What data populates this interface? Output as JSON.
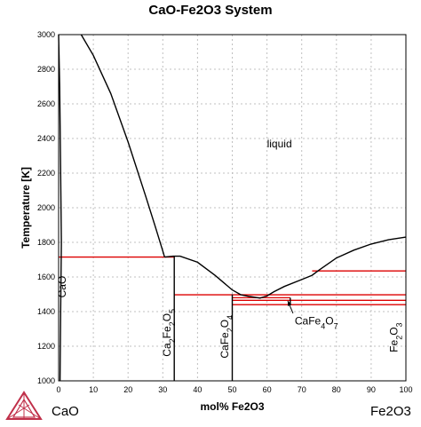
{
  "title": "CaO-Fe2O3 System",
  "endmembers": {
    "left": "CaO",
    "right": "Fe2O3"
  },
  "colors": {
    "curve": "#000000",
    "invariant": "#dd0000",
    "grid": "#c0c0c0"
  },
  "chart_data": {
    "type": "line",
    "title": "CaO-Fe2O3 System",
    "xlabel": "mol% Fe2O3",
    "ylabel": "Temperature [K]",
    "xlim": [
      0,
      100
    ],
    "ylim": [
      1000,
      3000
    ],
    "xticks": [
      0,
      10,
      20,
      30,
      40,
      50,
      60,
      70,
      80,
      90,
      100
    ],
    "yticks": [
      1000,
      1200,
      1400,
      1600,
      1800,
      2000,
      2200,
      2400,
      2600,
      2800,
      3000
    ],
    "grid": true,
    "liquidus": [
      [
        {
          "x": 6.5,
          "y": 3000
        },
        {
          "x": 10,
          "y": 2880
        },
        {
          "x": 15,
          "y": 2660
        },
        {
          "x": 20,
          "y": 2380
        },
        {
          "x": 25,
          "y": 2070
        },
        {
          "x": 28,
          "y": 1880
        },
        {
          "x": 30,
          "y": 1750
        },
        {
          "x": 30.5,
          "y": 1715
        }
      ],
      [
        {
          "x": 30.5,
          "y": 1715
        },
        {
          "x": 33,
          "y": 1720
        },
        {
          "x": 35,
          "y": 1720
        },
        {
          "x": 40,
          "y": 1685
        },
        {
          "x": 45,
          "y": 1610
        },
        {
          "x": 50,
          "y": 1525
        },
        {
          "x": 52.5,
          "y": 1497
        }
      ],
      [
        {
          "x": 52.5,
          "y": 1497
        },
        {
          "x": 55,
          "y": 1487
        },
        {
          "x": 58,
          "y": 1478
        },
        {
          "x": 60,
          "y": 1490
        },
        {
          "x": 62,
          "y": 1515
        },
        {
          "x": 65,
          "y": 1545
        },
        {
          "x": 70,
          "y": 1585
        },
        {
          "x": 73,
          "y": 1610
        },
        {
          "x": 75,
          "y": 1640
        },
        {
          "x": 80,
          "y": 1710
        },
        {
          "x": 85,
          "y": 1755
        },
        {
          "x": 90,
          "y": 1790
        },
        {
          "x": 95,
          "y": 1815
        },
        {
          "x": 100,
          "y": 1830
        }
      ]
    ],
    "cao_boundary": [
      {
        "x": 0,
        "y": 3000
      },
      {
        "x": 0.3,
        "y": 2700
      },
      {
        "x": 0.6,
        "y": 2200
      },
      {
        "x": 0.8,
        "y": 1800
      },
      {
        "x": 0.6,
        "y": 1400
      },
      {
        "x": 0.4,
        "y": 1000
      }
    ],
    "compound_lines": [
      {
        "x": 33.3,
        "y_min": 1000,
        "y_max": 1720
      },
      {
        "x": 50,
        "y_min": 1000,
        "y_max": 1500
      },
      {
        "x": 66.7,
        "y_min": 1440,
        "y_max": 1480
      }
    ],
    "invariants": [
      {
        "x1": 0,
        "x2": 33.3,
        "y": 1715
      },
      {
        "x1": 33.3,
        "x2": 100,
        "y": 1497
      },
      {
        "x1": 50,
        "x2": 66.7,
        "y": 1480
      },
      {
        "x1": 50,
        "x2": 100,
        "y": 1465
      },
      {
        "x1": 50,
        "x2": 100,
        "y": 1440
      },
      {
        "x1": 73,
        "x2": 100,
        "y": 1635
      }
    ],
    "annotations": [
      {
        "id": "liquid",
        "text": "liquid",
        "x": 60,
        "y": 2350,
        "rotate": 0
      },
      {
        "id": "cao",
        "text": "CaO",
        "base": "CaO",
        "x": 2,
        "y": 1480,
        "rotate": -90
      },
      {
        "id": "ca2fe2o5",
        "text": "Ca2Fe2O5",
        "parts": [
          [
            "Ca",
            false
          ],
          [
            "2",
            true
          ],
          [
            "Fe",
            false
          ],
          [
            "2",
            true
          ],
          [
            "O",
            false
          ],
          [
            "5",
            true
          ]
        ],
        "x": 32.2,
        "y": 1140,
        "rotate": -90
      },
      {
        "id": "cafe2o4",
        "text": "CaFe2O4",
        "parts": [
          [
            "CaFe",
            false
          ],
          [
            "2",
            true
          ],
          [
            "O",
            false
          ],
          [
            "4",
            true
          ]
        ],
        "x": 48.8,
        "y": 1130,
        "rotate": -90
      },
      {
        "id": "cafe4o7",
        "text": "CaFe4O7",
        "parts": [
          [
            "CaFe",
            false
          ],
          [
            "4",
            true
          ],
          [
            "O",
            false
          ],
          [
            "7",
            true
          ]
        ],
        "x": 68,
        "y": 1325,
        "rotate": 0
      },
      {
        "id": "fe2o3",
        "text": "Fe2O3",
        "parts": [
          [
            "Fe",
            false
          ],
          [
            "2",
            true
          ],
          [
            "O",
            false
          ],
          [
            "3",
            true
          ]
        ],
        "x": 97.6,
        "y": 1165,
        "rotate": -90
      }
    ],
    "pointer": {
      "from": {
        "x": 67.5,
        "y": 1390
      },
      "to": {
        "x": 66,
        "y": 1462
      }
    }
  }
}
